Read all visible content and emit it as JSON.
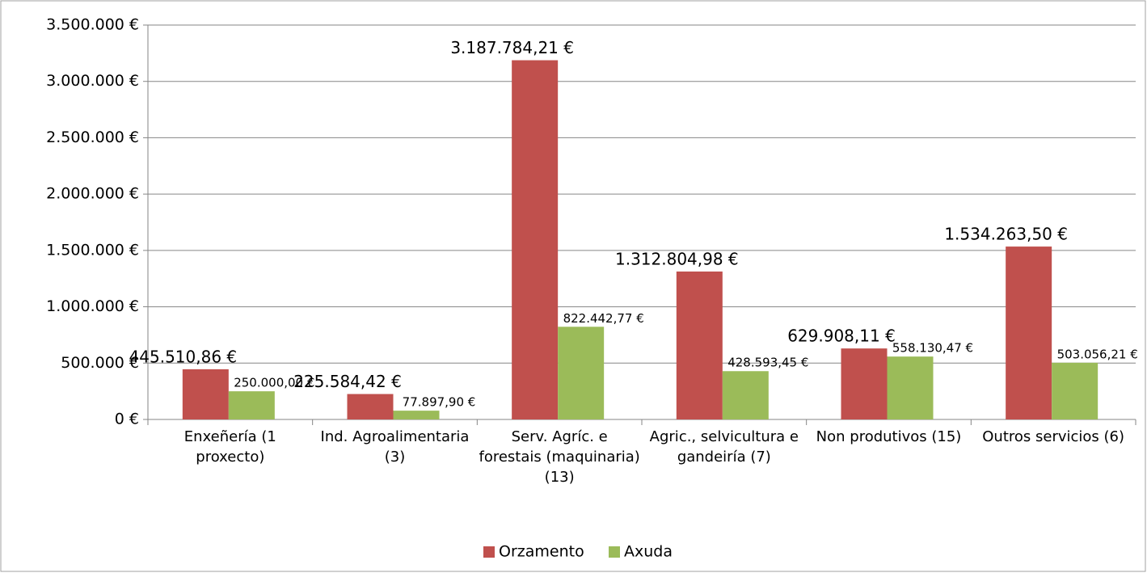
{
  "chart_data": {
    "type": "bar",
    "categories": [
      "Enxeñería (1 proxecto)",
      "Ind. Agroalimentaria (3)",
      "Serv. Agríc. e forestais (maquinaria) (13)",
      "Agric., selvicultura e gandeiría (7)",
      "Non produtivos (15)",
      "Outros servicios (6)"
    ],
    "series": [
      {
        "name": "Orzamento",
        "color": "#c0504d",
        "values": [
          445510.86,
          225584.42,
          3187784.21,
          1312804.98,
          629908.11,
          1534263.5
        ],
        "value_labels": [
          "445.510,86 €",
          "225.584,42 €",
          "3.187.784,21 €",
          "1.312.804,98 €",
          "629.908,11 €",
          "1.534.263,50 €"
        ]
      },
      {
        "name": "Axuda",
        "color": "#9bbb59",
        "values": [
          250000.0,
          77897.9,
          822442.77,
          428593.45,
          558130.47,
          503056.21
        ],
        "value_labels": [
          "250.000,00 €",
          "77.897,90 €",
          "822.442,77 €",
          "428.593,45 €",
          "558.130,47 €",
          "503.056,21 €"
        ]
      }
    ],
    "ylim": [
      0,
      3500000
    ],
    "yticks": [
      {
        "value": 0,
        "label": "0 €"
      },
      {
        "value": 500000,
        "label": "500.000 €"
      },
      {
        "value": 1000000,
        "label": "1.000.000 €"
      },
      {
        "value": 1500000,
        "label": "1.500.000 €"
      },
      {
        "value": 2000000,
        "label": "2.000.000 €"
      },
      {
        "value": 2500000,
        "label": "2.500.000 €"
      },
      {
        "value": 3000000,
        "label": "3.000.000 €"
      },
      {
        "value": 3500000,
        "label": "3.500.000 €"
      }
    ],
    "grid": true,
    "legend": "bottom"
  }
}
